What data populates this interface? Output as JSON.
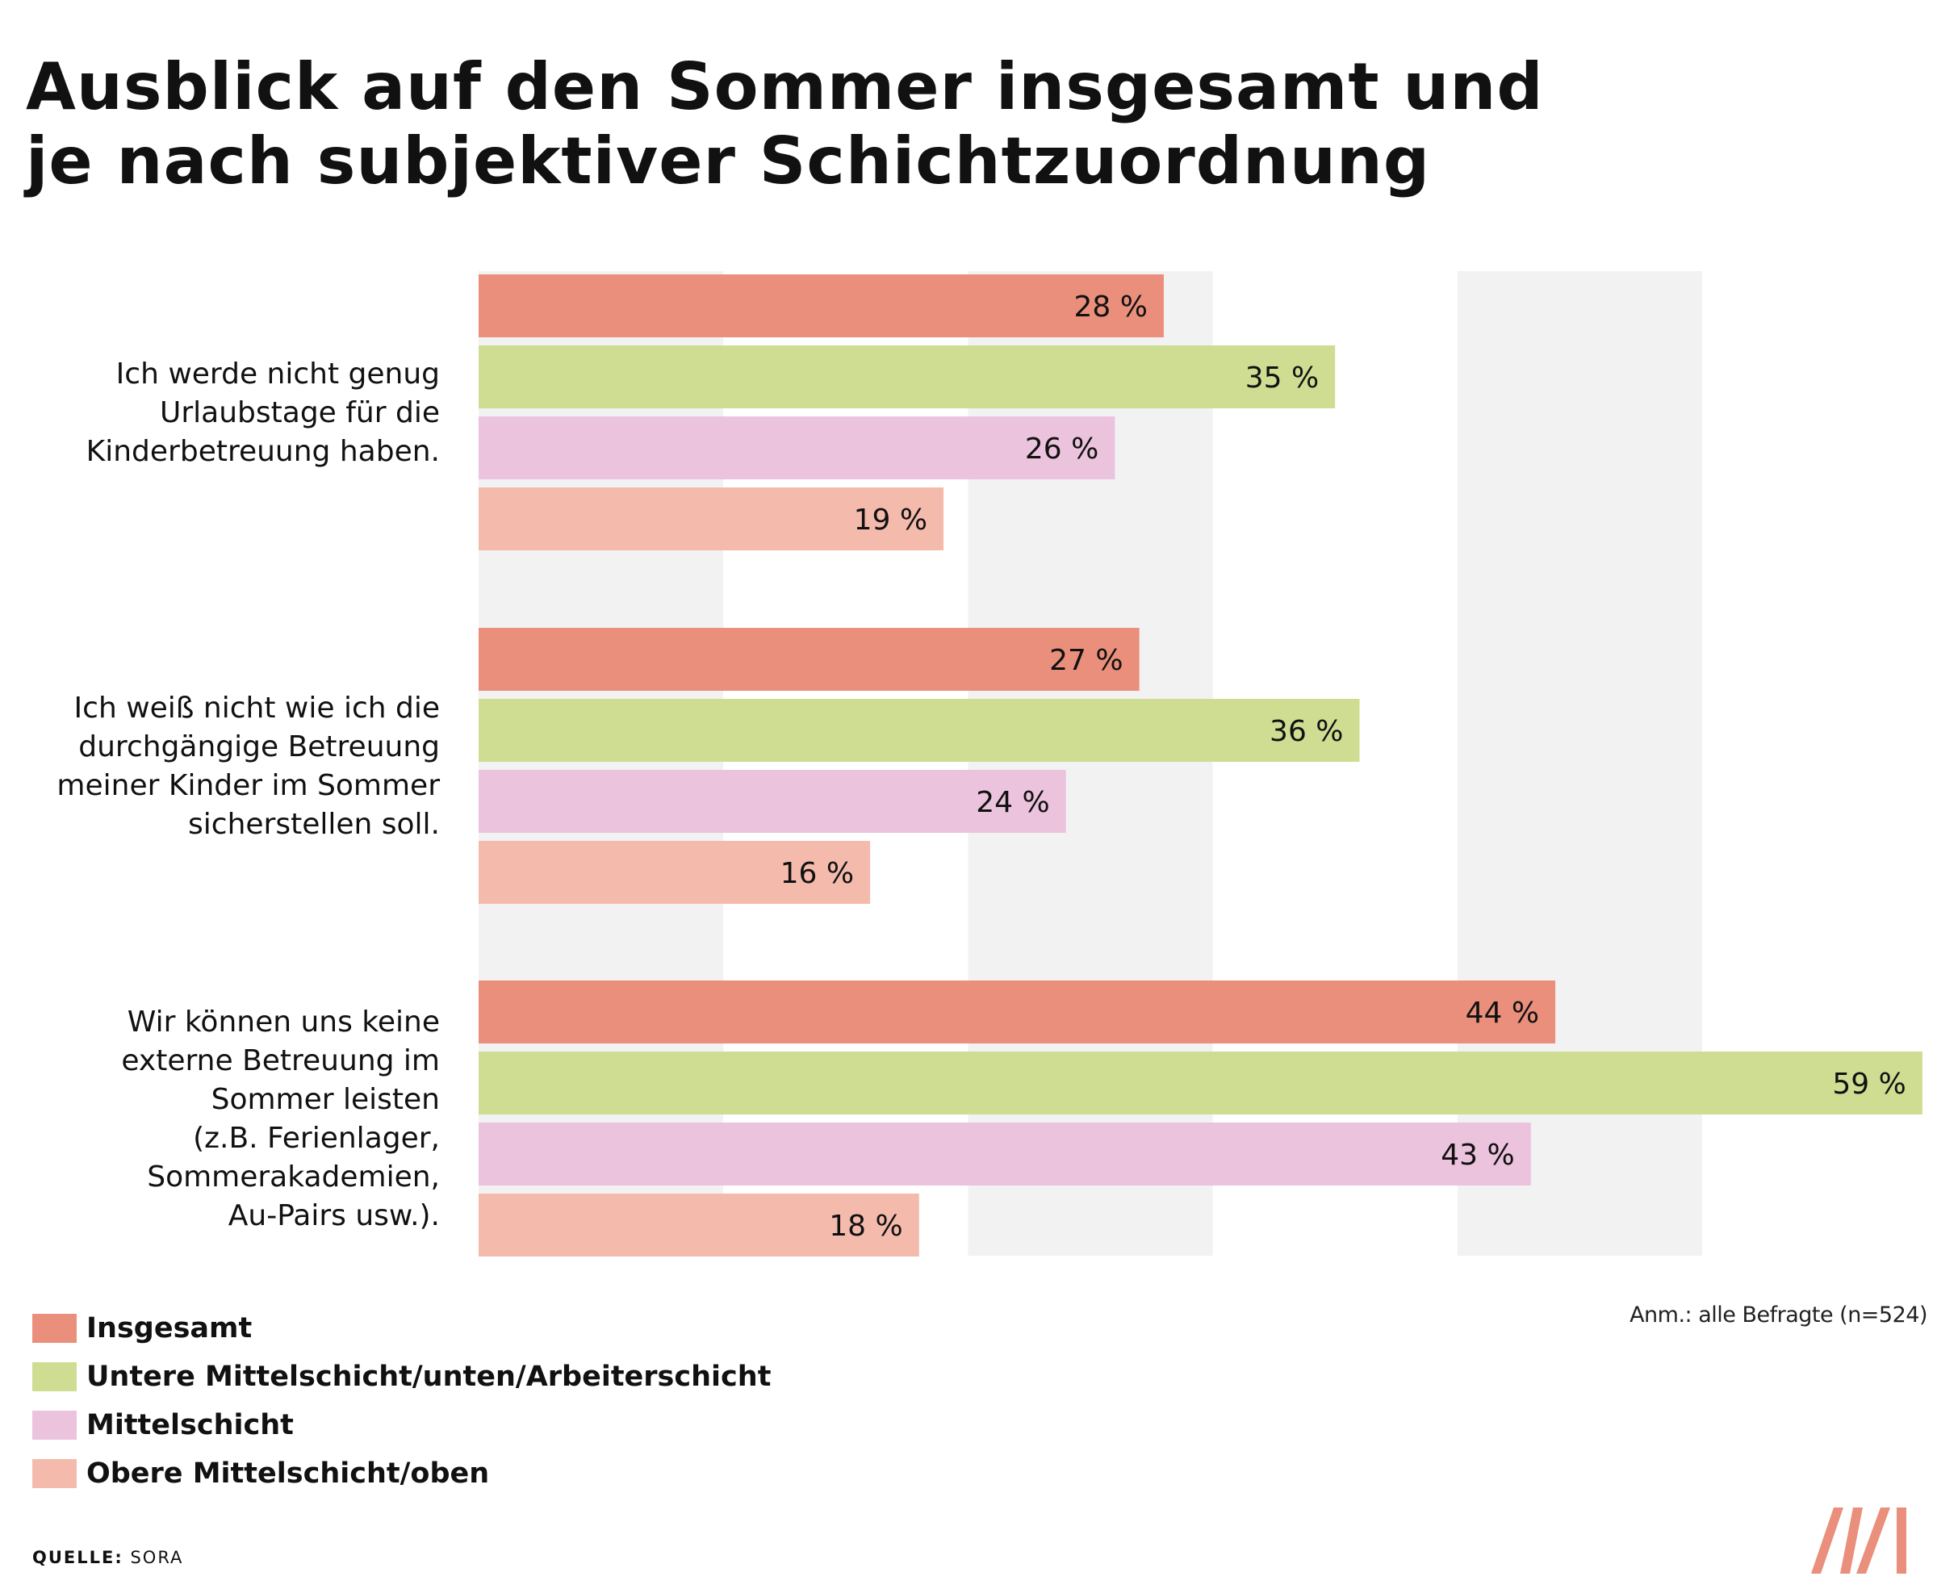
{
  "title": {
    "line1": "Ausblick auf den Sommer insgesamt und",
    "line2": "je nach subjektiver Schichtzuordnung"
  },
  "chart_data": {
    "type": "bar",
    "orientation": "horizontal",
    "categories": [
      [
        "Ich werde nicht genug",
        "Urlaubstage für die",
        "Kinderbetreuung haben."
      ],
      [
        "Ich weiß nicht wie ich die",
        "durchgängige Betreuung",
        "meiner Kinder im Sommer",
        "sicherstellen soll."
      ],
      [
        "Wir können uns keine",
        "externe Betreuung im",
        "Sommer leisten",
        "(z.B. Ferienlager,",
        "Sommerakademien,",
        "Au-Pairs usw.)."
      ]
    ],
    "series": [
      {
        "name": "Insgesamt",
        "color": "#EA8F7B",
        "values": [
          28,
          27,
          44
        ]
      },
      {
        "name": "Untere Mittelschicht/unten/Arbeiterschicht",
        "color": "#CEDD92",
        "values": [
          35,
          36,
          59
        ]
      },
      {
        "name": "Mittelschicht",
        "color": "#ECC3DD",
        "values": [
          26,
          24,
          43
        ]
      },
      {
        "name": "Obere Mittelschicht/oben",
        "color": "#F4BBAD",
        "values": [
          19,
          16,
          18
        ]
      }
    ],
    "value_suffix": " %",
    "xlim": [
      0,
      59
    ],
    "grid": true,
    "grid_band_step": 10,
    "grid_band_color": "#F2F2F2",
    "legend_position": "bottom-left"
  },
  "note": "Anm.: alle Befragte (n=524)",
  "source": {
    "label": "QUELLE:",
    "value": "SORA"
  },
  "logo": {
    "color": "#EA8F7B"
  }
}
